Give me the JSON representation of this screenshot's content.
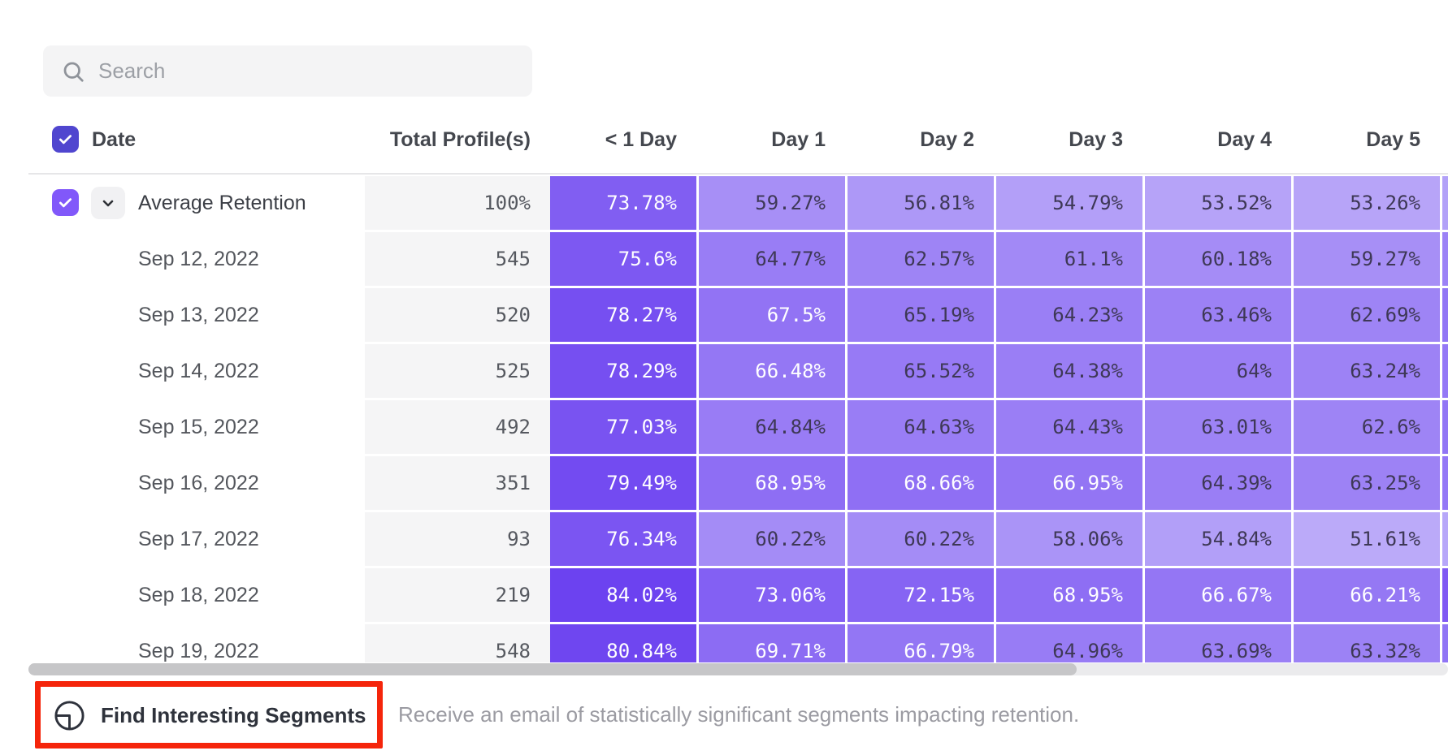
{
  "search": {
    "placeholder": "Search"
  },
  "table": {
    "date_header": "Date",
    "total_header": "Total Profile(s)",
    "day_headers": [
      "< 1 Day",
      "Day 1",
      "Day 2",
      "Day 3",
      "Day 4",
      "Day 5"
    ],
    "rows": [
      {
        "label": "Average Retention",
        "is_average": true,
        "total": "100%",
        "values": [
          "73.78%",
          "59.27%",
          "56.81%",
          "54.79%",
          "53.52%",
          "53.26%"
        ],
        "edge_color": "#b2a1f8"
      },
      {
        "label": "Sep 12, 2022",
        "is_average": false,
        "total": "545",
        "values": [
          "75.6%",
          "64.77%",
          "62.57%",
          "61.1%",
          "60.18%",
          "59.27%"
        ],
        "edge_color": "#9c82f6"
      },
      {
        "label": "Sep 13, 2022",
        "is_average": false,
        "total": "520",
        "values": [
          "78.27%",
          "67.5%",
          "65.19%",
          "64.23%",
          "63.46%",
          "62.69%"
        ],
        "edge_color": "#9176f5"
      },
      {
        "label": "Sep 14, 2022",
        "is_average": false,
        "total": "525",
        "values": [
          "78.29%",
          "66.48%",
          "65.52%",
          "64.38%",
          "64%",
          "63.24%"
        ],
        "edge_color": "#9478f6"
      },
      {
        "label": "Sep 15, 2022",
        "is_average": false,
        "total": "492",
        "values": [
          "77.03%",
          "64.84%",
          "64.63%",
          "64.43%",
          "63.01%",
          "62.6%"
        ],
        "edge_color": "#9176f5"
      },
      {
        "label": "Sep 16, 2022",
        "is_average": false,
        "total": "351",
        "values": [
          "79.49%",
          "68.95%",
          "68.66%",
          "66.95%",
          "64.39%",
          "63.25%"
        ],
        "edge_color": "#9478f6"
      },
      {
        "label": "Sep 17, 2022",
        "is_average": false,
        "total": "93",
        "values": [
          "76.34%",
          "60.22%",
          "60.22%",
          "58.06%",
          "54.84%",
          "51.61%"
        ],
        "edge_color": "#b7a7f9"
      },
      {
        "label": "Sep 18, 2022",
        "is_average": false,
        "total": "219",
        "values": [
          "84.02%",
          "73.06%",
          "72.15%",
          "68.95%",
          "66.67%",
          "66.21%"
        ],
        "edge_color": "#8059f3"
      },
      {
        "label": "Sep 19, 2022",
        "is_average": false,
        "total": "548",
        "values": [
          "80.84%",
          "69.71%",
          "66.79%",
          "64.96%",
          "63.69%",
          "63.32%"
        ],
        "edge_color": "#9075f5"
      }
    ],
    "heat_scale": {
      "min_value": 50,
      "max_value": 82,
      "light_color": "#bfaff9",
      "dark_color": "#6c42f0",
      "white_text_threshold": 66,
      "dark_text_color": "#3e3856",
      "light_text_color": "#ffffff"
    }
  },
  "footer": {
    "button_label": "Find Interesting Segments",
    "description": "Receive an email of statistically significant segments impacting retention.",
    "highlight_color": "#f5250b"
  },
  "colors": {
    "header_checkbox": "#5046cf",
    "row_checkbox": "#8158fa",
    "total_column_bg": "#f5f5f6"
  }
}
